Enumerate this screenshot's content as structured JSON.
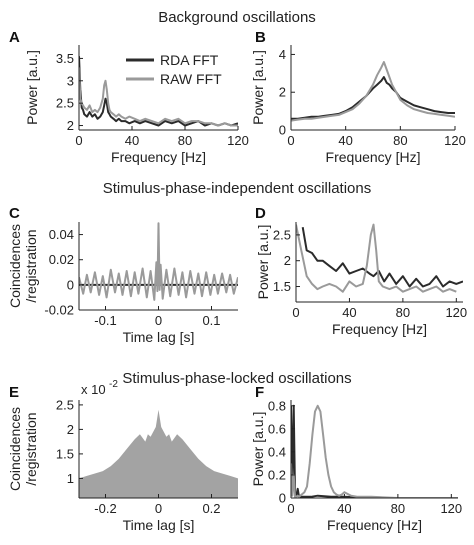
{
  "figure": {
    "section_titles": {
      "background": "Background oscillations",
      "independent": "Stimulus-phase-independent oscillations",
      "locked": "Stimulus-phase-locked oscillations"
    },
    "legend": [
      "RDA FFT",
      "RAW FFT"
    ]
  },
  "colors": {
    "rda": "#2b2b2b",
    "raw": "#9a9a9a",
    "fill": "#a3a3a3"
  },
  "chart_data": [
    {
      "panel": "A",
      "type": "line",
      "xlabel": "Frequency [Hz]",
      "ylabel": "Power [a.u.]",
      "xlim": [
        0,
        120
      ],
      "ylim": [
        1.9,
        3.8
      ],
      "xticks": [
        0,
        40,
        80,
        120
      ],
      "yticks": [
        2,
        2.5,
        3,
        3.5
      ],
      "xtick_labels": [
        "0",
        "40",
        "80",
        "120"
      ],
      "ytick_labels": [
        "2",
        "2.5",
        "3",
        "3.5"
      ],
      "series": [
        {
          "name": "RDA FFT",
          "color": "#2b2b2b",
          "x": [
            0,
            1,
            2,
            3,
            4,
            6,
            8,
            10,
            12,
            14,
            16,
            18,
            19,
            20,
            21,
            22,
            23,
            24,
            26,
            28,
            30,
            32,
            35,
            38,
            42,
            46,
            50,
            55,
            60,
            65,
            70,
            75,
            80,
            85,
            90,
            95,
            100,
            105,
            110,
            115,
            120
          ],
          "y": [
            3.55,
            2.8,
            2.4,
            2.35,
            2.25,
            2.2,
            2.3,
            2.2,
            2.25,
            2.15,
            2.2,
            2.3,
            2.45,
            2.6,
            2.5,
            2.3,
            2.25,
            2.2,
            2.15,
            2.1,
            2.15,
            2.1,
            2.1,
            2.05,
            2.1,
            2.05,
            2.1,
            2.05,
            2.0,
            2.1,
            2.05,
            2.1,
            2.0,
            2.05,
            2.1,
            2.0,
            2.05,
            2.0,
            2.05,
            2.0,
            2.05
          ]
        },
        {
          "name": "RAW FFT",
          "color": "#9a9a9a",
          "x": [
            0,
            1,
            2,
            3,
            4,
            6,
            8,
            10,
            12,
            14,
            16,
            18,
            19,
            20,
            21,
            22,
            23,
            24,
            26,
            28,
            30,
            32,
            35,
            38,
            42,
            46,
            50,
            55,
            60,
            65,
            70,
            75,
            80,
            85,
            90,
            95,
            100,
            105,
            110,
            115,
            120
          ],
          "y": [
            3.3,
            2.6,
            2.5,
            2.45,
            2.4,
            2.35,
            2.45,
            2.3,
            2.35,
            2.3,
            2.4,
            2.6,
            2.9,
            3.0,
            2.8,
            2.5,
            2.35,
            2.3,
            2.25,
            2.2,
            2.25,
            2.2,
            2.15,
            2.2,
            2.15,
            2.1,
            2.15,
            2.1,
            2.05,
            2.15,
            2.1,
            2.15,
            2.05,
            2.1,
            2.1,
            2.05,
            2.05,
            2.0,
            2.05,
            2.0,
            2.0
          ]
        }
      ]
    },
    {
      "panel": "B",
      "type": "line",
      "xlabel": "Frequency [Hz]",
      "ylabel": "Power [a.u.]",
      "xlim": [
        0,
        120
      ],
      "ylim": [
        0,
        4.5
      ],
      "xticks": [
        0,
        40,
        80,
        120
      ],
      "yticks": [
        0,
        2,
        4
      ],
      "xtick_labels": [
        "0",
        "40",
        "80",
        "120"
      ],
      "ytick_labels": [
        "0",
        "2",
        "4"
      ],
      "series": [
        {
          "name": "RDA FFT",
          "color": "#2b2b2b",
          "x": [
            0,
            5,
            10,
            15,
            20,
            25,
            30,
            35,
            40,
            45,
            50,
            55,
            60,
            63,
            66,
            68,
            70,
            72,
            74,
            77,
            80,
            85,
            90,
            95,
            100,
            105,
            110,
            115,
            120
          ],
          "y": [
            0.6,
            0.6,
            0.65,
            0.7,
            0.7,
            0.75,
            0.8,
            0.85,
            1.0,
            1.2,
            1.5,
            1.8,
            2.2,
            2.4,
            2.6,
            2.8,
            2.5,
            2.4,
            2.2,
            2.0,
            1.7,
            1.5,
            1.3,
            1.2,
            1.1,
            1.0,
            0.95,
            0.9,
            0.9
          ]
        },
        {
          "name": "RAW FFT",
          "color": "#9a9a9a",
          "x": [
            0,
            5,
            10,
            15,
            20,
            25,
            30,
            35,
            40,
            45,
            50,
            55,
            60,
            63,
            66,
            68,
            70,
            72,
            74,
            77,
            80,
            85,
            90,
            95,
            100,
            105,
            110,
            115,
            120
          ],
          "y": [
            0.5,
            0.55,
            0.6,
            0.6,
            0.65,
            0.7,
            0.75,
            0.8,
            0.95,
            1.1,
            1.4,
            1.8,
            2.4,
            2.9,
            3.3,
            3.6,
            3.2,
            2.8,
            2.4,
            2.0,
            1.6,
            1.3,
            1.1,
            1.0,
            0.9,
            0.85,
            0.8,
            0.75,
            0.7
          ]
        }
      ]
    },
    {
      "panel": "C",
      "type": "line",
      "xlabel": "Time lag [s]",
      "ylabel": "Coincidences /registration",
      "xlim": [
        -0.15,
        0.15
      ],
      "ylim": [
        -0.02,
        0.05
      ],
      "xticks": [
        -0.1,
        0,
        0.1
      ],
      "yticks": [
        -0.02,
        0,
        0.02,
        0.04
      ],
      "xtick_labels": [
        "-0.1",
        "0",
        "0.1"
      ],
      "ytick_labels": [
        "-0.02",
        "0",
        "0.02",
        "0.04"
      ],
      "series": [
        {
          "name": "RDA FFT",
          "color": "#2b2b2b",
          "x": [
            -0.15,
            0.15
          ],
          "y": [
            0,
            0
          ]
        },
        {
          "name": "RAW FFT",
          "color": "#9a9a9a",
          "x": [
            -0.15,
            -0.142,
            -0.135,
            -0.128,
            -0.12,
            -0.112,
            -0.105,
            -0.098,
            -0.09,
            -0.082,
            -0.075,
            -0.068,
            -0.06,
            -0.052,
            -0.045,
            -0.038,
            -0.03,
            -0.022,
            -0.015,
            -0.008,
            -0.004,
            -0.002,
            0,
            0.002,
            0.004,
            0.008,
            0.015,
            0.022,
            0.03,
            0.038,
            0.045,
            0.052,
            0.06,
            0.068,
            0.075,
            0.082,
            0.09,
            0.098,
            0.105,
            0.112,
            0.12,
            0.128,
            0.135,
            0.142,
            0.15
          ],
          "y": [
            0.006,
            -0.007,
            0.008,
            -0.006,
            0.01,
            -0.008,
            0.007,
            -0.01,
            0.012,
            -0.006,
            0.009,
            -0.008,
            0.011,
            -0.009,
            0.01,
            -0.007,
            0.013,
            -0.01,
            0.011,
            -0.012,
            0.018,
            -0.005,
            0.049,
            -0.004,
            0.016,
            -0.011,
            0.012,
            -0.009,
            0.013,
            -0.008,
            0.01,
            -0.01,
            0.011,
            -0.007,
            0.009,
            -0.009,
            0.01,
            -0.008,
            0.008,
            -0.007,
            0.009,
            -0.006,
            0.008,
            -0.007,
            0.006
          ]
        }
      ]
    },
    {
      "panel": "D",
      "type": "line",
      "xlabel": "Frequency [Hz]",
      "ylabel": "Power [a.u.]",
      "xlim": [
        0,
        125
      ],
      "ylim": [
        1.2,
        2.75
      ],
      "xticks": [
        0,
        40,
        80,
        120
      ],
      "yticks": [
        1.5,
        2,
        2.5
      ],
      "xtick_labels": [
        "0",
        "40",
        "80",
        "120"
      ],
      "ytick_labels": [
        "1.5",
        "2",
        "2.5"
      ],
      "series": [
        {
          "name": "RDA FFT",
          "color": "#2b2b2b",
          "x": [
            5,
            8,
            12,
            16,
            20,
            25,
            30,
            35,
            40,
            45,
            50,
            55,
            58,
            62,
            66,
            70,
            75,
            80,
            85,
            90,
            95,
            100,
            105,
            110,
            115,
            120,
            125
          ],
          "y": [
            2.65,
            2.2,
            2.15,
            2.0,
            2.0,
            1.9,
            1.8,
            1.95,
            1.75,
            1.8,
            1.85,
            1.75,
            1.7,
            1.8,
            1.6,
            1.75,
            1.55,
            1.7,
            1.5,
            1.65,
            1.5,
            1.55,
            1.7,
            1.5,
            1.6,
            1.55,
            1.6
          ]
        },
        {
          "name": "RAW FFT",
          "color": "#9a9a9a",
          "x": [
            0,
            4,
            8,
            12,
            16,
            20,
            25,
            30,
            35,
            40,
            45,
            50,
            53,
            56,
            58,
            60,
            62,
            65,
            70,
            75,
            80,
            85,
            90,
            95,
            100,
            105,
            110,
            115,
            120
          ],
          "y": [
            2.7,
            2.2,
            1.7,
            1.55,
            1.45,
            1.5,
            1.55,
            1.5,
            1.4,
            1.6,
            1.5,
            1.55,
            1.9,
            2.5,
            2.7,
            2.2,
            1.6,
            1.5,
            1.45,
            1.5,
            1.4,
            1.45,
            1.5,
            1.4,
            1.45,
            1.5,
            1.4,
            1.45,
            1.4
          ]
        }
      ]
    },
    {
      "panel": "E",
      "type": "area",
      "xlabel": "Time lag [s]",
      "ylabel": "Coincidences /registration",
      "multiplier": "x 10",
      "exponent": "-2",
      "xlim": [
        -0.3,
        0.3
      ],
      "ylim": [
        0.6,
        2.6
      ],
      "xticks": [
        -0.2,
        0,
        0.2
      ],
      "yticks": [
        1,
        1.5,
        2,
        2.5
      ],
      "xtick_labels": [
        "-0.2",
        "0",
        "0.2"
      ],
      "ytick_labels": [
        "1",
        "1.5",
        "2",
        "2.5"
      ],
      "series": [
        {
          "color": "#a3a3a3",
          "x": [
            -0.3,
            -0.27,
            -0.24,
            -0.21,
            -0.18,
            -0.15,
            -0.12,
            -0.09,
            -0.07,
            -0.05,
            -0.04,
            -0.03,
            -0.02,
            -0.01,
            0,
            0.01,
            0.02,
            0.03,
            0.04,
            0.05,
            0.07,
            0.09,
            0.12,
            0.15,
            0.18,
            0.21,
            0.24,
            0.27,
            0.3
          ],
          "y": [
            1.0,
            1.05,
            1.1,
            1.15,
            1.25,
            1.4,
            1.6,
            1.8,
            1.9,
            1.75,
            1.9,
            1.85,
            1.95,
            2.05,
            2.4,
            2.05,
            1.95,
            1.85,
            1.9,
            1.75,
            1.9,
            1.8,
            1.6,
            1.4,
            1.25,
            1.15,
            1.1,
            1.05,
            1.0
          ]
        }
      ]
    },
    {
      "panel": "F",
      "type": "line",
      "xlabel": "Frequency [Hz]",
      "ylabel": "Power [a.u.]",
      "xlim": [
        0,
        125
      ],
      "ylim": [
        0,
        0.85
      ],
      "xticks": [
        0,
        40,
        80,
        120
      ],
      "yticks": [
        0,
        0.2,
        0.4,
        0.6,
        0.8
      ],
      "xtick_labels": [
        "0",
        "40",
        "80",
        "120"
      ],
      "ytick_labels": [
        "0",
        "0.2",
        "0.4",
        "0.6",
        "0.8"
      ],
      "series": [
        {
          "name": "RDA FFT",
          "color": "#2b2b2b",
          "x": [
            0,
            1,
            2,
            3,
            4,
            5,
            6,
            8,
            10,
            15,
            20,
            30,
            40,
            60,
            80,
            100,
            125
          ],
          "y": [
            0.8,
            0.1,
            0.8,
            0.05,
            0.02,
            0.08,
            0.01,
            0.01,
            0.01,
            0.01,
            0.02,
            0.01,
            0.01,
            0.0,
            0.0,
            0.0,
            0.0
          ]
        },
        {
          "name": "RAW FFT",
          "color": "#9a9a9a",
          "x": [
            0,
            1,
            2,
            3,
            4,
            5,
            6,
            8,
            10,
            12,
            14,
            16,
            18,
            20,
            22,
            24,
            26,
            28,
            30,
            32,
            34,
            36,
            38,
            40,
            45,
            50,
            60,
            80,
            100,
            125
          ],
          "y": [
            0.3,
            0.02,
            0.2,
            0.01,
            0.01,
            0.02,
            0.01,
            0.03,
            0.05,
            0.1,
            0.3,
            0.55,
            0.75,
            0.8,
            0.75,
            0.55,
            0.35,
            0.2,
            0.1,
            0.05,
            0.03,
            0.02,
            0.03,
            0.05,
            0.02,
            0.01,
            0.01,
            0.0,
            0.0,
            0.0
          ]
        }
      ]
    }
  ]
}
